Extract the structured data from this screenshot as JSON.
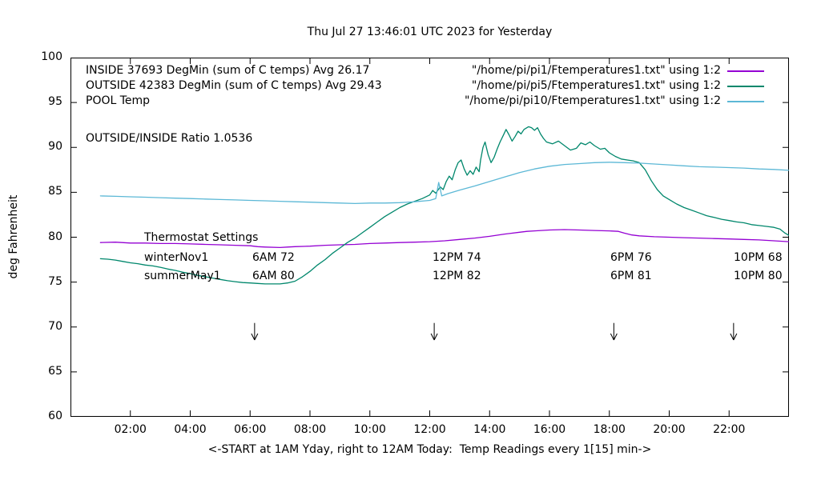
{
  "chart_data": {
    "type": "line",
    "title": "Thu Jul 27 13:46:01 UTC 2023 for Yesterday",
    "xlabel": "<-START at 1AM Yday, right to 12AM Today:  Temp Readings every 1[15] min->",
    "ylabel": "deg Fahrenheit",
    "xlim": [
      0,
      24
    ],
    "ylim": [
      60,
      100
    ],
    "grid": false,
    "legend_position": "top-right-inside",
    "xticks": [
      {
        "v": 2,
        "label": "02:00"
      },
      {
        "v": 4,
        "label": "04:00"
      },
      {
        "v": 6,
        "label": "06:00"
      },
      {
        "v": 8,
        "label": "08:00"
      },
      {
        "v": 10,
        "label": "10:00"
      },
      {
        "v": 12,
        "label": "12:00"
      },
      {
        "v": 14,
        "label": "14:00"
      },
      {
        "v": 16,
        "label": "16:00"
      },
      {
        "v": 18,
        "label": "18:00"
      },
      {
        "v": 20,
        "label": "20:00"
      },
      {
        "v": 22,
        "label": "22:00"
      }
    ],
    "yticks": [
      60,
      65,
      70,
      75,
      80,
      85,
      90,
      95,
      100
    ],
    "series": [
      {
        "id": "inside",
        "color": "#9400d3",
        "label_left": "INSIDE 37693 DegMin (sum of C temps) Avg 26.17",
        "label_right": "\"/home/pi/pi1/Ftemperatures1.txt\" using 1:2",
        "points": [
          [
            1,
            79.4
          ],
          [
            1.5,
            79.45
          ],
          [
            2,
            79.35
          ],
          [
            2.5,
            79.35
          ],
          [
            3,
            79.3
          ],
          [
            3.5,
            79.3
          ],
          [
            4,
            79.25
          ],
          [
            4.5,
            79.2
          ],
          [
            5,
            79.15
          ],
          [
            5.5,
            79.1
          ],
          [
            6,
            79.05
          ],
          [
            6.25,
            78.95
          ],
          [
            6.5,
            78.9
          ],
          [
            7,
            78.85
          ],
          [
            7.25,
            78.9
          ],
          [
            7.5,
            78.95
          ],
          [
            8,
            79.0
          ],
          [
            8.5,
            79.1
          ],
          [
            9,
            79.15
          ],
          [
            9.5,
            79.2
          ],
          [
            10,
            79.3
          ],
          [
            10.5,
            79.35
          ],
          [
            11,
            79.4
          ],
          [
            11.5,
            79.45
          ],
          [
            12,
            79.5
          ],
          [
            12.5,
            79.6
          ],
          [
            13,
            79.75
          ],
          [
            13.5,
            79.9
          ],
          [
            14,
            80.1
          ],
          [
            14.5,
            80.35
          ],
          [
            15,
            80.55
          ],
          [
            15.25,
            80.65
          ],
          [
            15.5,
            80.7
          ],
          [
            16,
            80.8
          ],
          [
            16.5,
            80.85
          ],
          [
            17,
            80.8
          ],
          [
            17.5,
            80.75
          ],
          [
            18,
            80.7
          ],
          [
            18.3,
            80.65
          ],
          [
            18.5,
            80.45
          ],
          [
            18.75,
            80.25
          ],
          [
            19,
            80.15
          ],
          [
            19.5,
            80.05
          ],
          [
            20,
            80.0
          ],
          [
            20.5,
            79.95
          ],
          [
            21,
            79.9
          ],
          [
            21.5,
            79.85
          ],
          [
            22,
            79.8
          ],
          [
            22.5,
            79.75
          ],
          [
            23,
            79.7
          ],
          [
            23.5,
            79.6
          ],
          [
            24,
            79.5
          ]
        ]
      },
      {
        "id": "outside",
        "color": "#00876c",
        "label_left": "OUTSIDE 42383 DegMin (sum of C temps) Avg 29.43",
        "label_right": "\"/home/pi/pi5/Ftemperatures1.txt\" using 1:2",
        "points": [
          [
            1,
            77.6
          ],
          [
            1.25,
            77.55
          ],
          [
            1.5,
            77.45
          ],
          [
            1.75,
            77.3
          ],
          [
            2,
            77.15
          ],
          [
            2.25,
            77.05
          ],
          [
            2.5,
            76.9
          ],
          [
            2.75,
            76.8
          ],
          [
            3,
            76.65
          ],
          [
            3.25,
            76.45
          ],
          [
            3.5,
            76.3
          ],
          [
            3.75,
            76.1
          ],
          [
            4,
            75.95
          ],
          [
            4.25,
            75.75
          ],
          [
            4.5,
            75.6
          ],
          [
            4.75,
            75.45
          ],
          [
            5,
            75.3
          ],
          [
            5.25,
            75.15
          ],
          [
            5.5,
            75.05
          ],
          [
            5.75,
            74.95
          ],
          [
            6,
            74.9
          ],
          [
            6.25,
            74.85
          ],
          [
            6.5,
            74.8
          ],
          [
            6.75,
            74.8
          ],
          [
            7,
            74.8
          ],
          [
            7.25,
            74.9
          ],
          [
            7.5,
            75.1
          ],
          [
            7.75,
            75.6
          ],
          [
            8,
            76.2
          ],
          [
            8.25,
            76.9
          ],
          [
            8.5,
            77.5
          ],
          [
            8.75,
            78.2
          ],
          [
            9,
            78.8
          ],
          [
            9.25,
            79.4
          ],
          [
            9.5,
            79.9
          ],
          [
            9.75,
            80.5
          ],
          [
            10,
            81.1
          ],
          [
            10.25,
            81.7
          ],
          [
            10.5,
            82.3
          ],
          [
            10.75,
            82.8
          ],
          [
            11,
            83.3
          ],
          [
            11.25,
            83.7
          ],
          [
            11.5,
            84.0
          ],
          [
            11.75,
            84.3
          ],
          [
            12,
            84.7
          ],
          [
            12.1,
            85.2
          ],
          [
            12.2,
            84.9
          ],
          [
            12.35,
            85.6
          ],
          [
            12.45,
            85.3
          ],
          [
            12.55,
            86.2
          ],
          [
            12.65,
            86.8
          ],
          [
            12.75,
            86.4
          ],
          [
            12.85,
            87.5
          ],
          [
            12.95,
            88.3
          ],
          [
            13.05,
            88.6
          ],
          [
            13.15,
            87.6
          ],
          [
            13.25,
            86.9
          ],
          [
            13.35,
            87.4
          ],
          [
            13.45,
            87.0
          ],
          [
            13.55,
            87.8
          ],
          [
            13.65,
            87.3
          ],
          [
            13.7,
            88.6
          ],
          [
            13.78,
            90.0
          ],
          [
            13.85,
            90.6
          ],
          [
            13.95,
            89.2
          ],
          [
            14.05,
            88.3
          ],
          [
            14.15,
            88.9
          ],
          [
            14.25,
            89.8
          ],
          [
            14.35,
            90.6
          ],
          [
            14.45,
            91.3
          ],
          [
            14.55,
            92.0
          ],
          [
            14.65,
            91.4
          ],
          [
            14.75,
            90.7
          ],
          [
            14.85,
            91.2
          ],
          [
            14.95,
            91.8
          ],
          [
            15.05,
            91.5
          ],
          [
            15.15,
            92.0
          ],
          [
            15.3,
            92.3
          ],
          [
            15.4,
            92.2
          ],
          [
            15.5,
            91.9
          ],
          [
            15.6,
            92.2
          ],
          [
            15.7,
            91.5
          ],
          [
            15.8,
            91.0
          ],
          [
            15.9,
            90.6
          ],
          [
            16.1,
            90.4
          ],
          [
            16.3,
            90.7
          ],
          [
            16.5,
            90.2
          ],
          [
            16.7,
            89.7
          ],
          [
            16.9,
            89.9
          ],
          [
            17.05,
            90.5
          ],
          [
            17.2,
            90.3
          ],
          [
            17.35,
            90.6
          ],
          [
            17.5,
            90.2
          ],
          [
            17.7,
            89.8
          ],
          [
            17.85,
            89.9
          ],
          [
            18,
            89.4
          ],
          [
            18.2,
            89.0
          ],
          [
            18.4,
            88.7
          ],
          [
            18.6,
            88.6
          ],
          [
            18.8,
            88.5
          ],
          [
            19,
            88.3
          ],
          [
            19.2,
            87.5
          ],
          [
            19.4,
            86.3
          ],
          [
            19.6,
            85.3
          ],
          [
            19.8,
            84.6
          ],
          [
            20,
            84.2
          ],
          [
            20.25,
            83.7
          ],
          [
            20.5,
            83.3
          ],
          [
            20.75,
            83.0
          ],
          [
            21,
            82.7
          ],
          [
            21.25,
            82.4
          ],
          [
            21.5,
            82.2
          ],
          [
            21.75,
            82.0
          ],
          [
            22,
            81.85
          ],
          [
            22.25,
            81.7
          ],
          [
            22.5,
            81.6
          ],
          [
            22.75,
            81.4
          ],
          [
            23,
            81.3
          ],
          [
            23.25,
            81.2
          ],
          [
            23.5,
            81.1
          ],
          [
            23.7,
            80.9
          ],
          [
            23.85,
            80.5
          ],
          [
            24,
            80.2
          ]
        ]
      },
      {
        "id": "pool",
        "color": "#5cb8d6",
        "label_left": "POOL Temp",
        "label_right": "\"/home/pi/pi10/Ftemperatures1.txt\" using 1:2",
        "points": [
          [
            1,
            84.6
          ],
          [
            1.5,
            84.55
          ],
          [
            2,
            84.5
          ],
          [
            2.5,
            84.45
          ],
          [
            3,
            84.4
          ],
          [
            3.5,
            84.35
          ],
          [
            4,
            84.3
          ],
          [
            4.5,
            84.25
          ],
          [
            5,
            84.2
          ],
          [
            5.5,
            84.15
          ],
          [
            6,
            84.1
          ],
          [
            6.5,
            84.05
          ],
          [
            7,
            84.0
          ],
          [
            7.5,
            83.95
          ],
          [
            8,
            83.9
          ],
          [
            8.5,
            83.85
          ],
          [
            9,
            83.8
          ],
          [
            9.5,
            83.75
          ],
          [
            10,
            83.8
          ],
          [
            10.5,
            83.8
          ],
          [
            11,
            83.85
          ],
          [
            11.5,
            83.95
          ],
          [
            12,
            84.1
          ],
          [
            12.2,
            84.3
          ],
          [
            12.3,
            86.1
          ],
          [
            12.4,
            84.6
          ],
          [
            12.6,
            84.85
          ],
          [
            13,
            85.25
          ],
          [
            13.5,
            85.7
          ],
          [
            14,
            86.2
          ],
          [
            14.5,
            86.7
          ],
          [
            15,
            87.2
          ],
          [
            15.5,
            87.6
          ],
          [
            16,
            87.9
          ],
          [
            16.5,
            88.1
          ],
          [
            17,
            88.2
          ],
          [
            17.5,
            88.3
          ],
          [
            18,
            88.35
          ],
          [
            18.5,
            88.3
          ],
          [
            19,
            88.25
          ],
          [
            19.5,
            88.15
          ],
          [
            20,
            88.05
          ],
          [
            20.5,
            87.95
          ],
          [
            21,
            87.85
          ],
          [
            21.5,
            87.8
          ],
          [
            22,
            87.75
          ],
          [
            22.5,
            87.7
          ],
          [
            23,
            87.6
          ],
          [
            23.5,
            87.55
          ],
          [
            24,
            87.45
          ]
        ]
      }
    ],
    "annotations": {
      "ratio": "OUTSIDE/INSIDE Ratio 1.0536",
      "thermostat": {
        "header": "Thermostat Settings",
        "rows": [
          {
            "name": "winterNov1",
            "cols": [
              "6AM 72",
              "12PM 74",
              "6PM 76",
              "10PM 68"
            ]
          },
          {
            "name": "summerMay1",
            "cols": [
              "6AM 80",
              "12PM 82",
              "6PM 81",
              "10PM 80"
            ]
          }
        ]
      },
      "arrows_x": [
        6.15,
        12.15,
        18.15,
        22.15
      ],
      "arrows_y_top": 70.45,
      "arrows_y_tip": 68.55
    }
  }
}
